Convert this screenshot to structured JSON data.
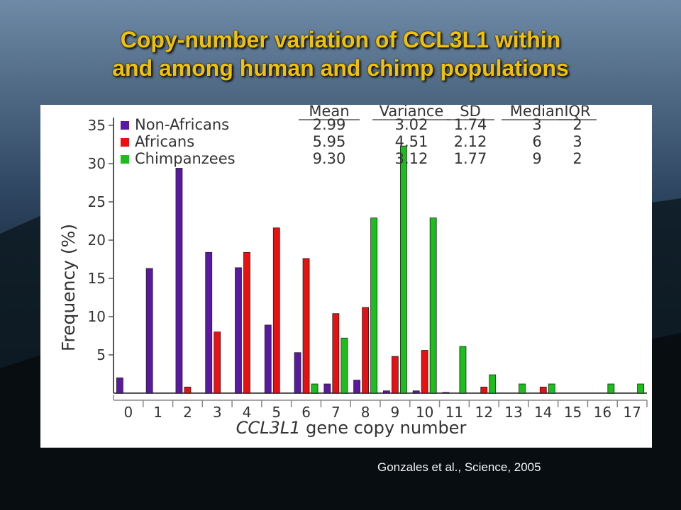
{
  "slide": {
    "title_line1": "Copy-number variation of CCL3L1 within",
    "title_line2": "and among human and chimp populations",
    "citation": "Gonzales et al., Science, 2005"
  },
  "colors": {
    "title": "#f2c200",
    "non_africans": "#5b19a1",
    "africans": "#e81010",
    "chimpanzees": "#1bbf1b"
  },
  "chart_data": {
    "type": "bar",
    "xlabel_italic": "CCL3L1",
    "xlabel_rest": " gene copy number",
    "ylabel": "Frequency (%)",
    "ylim": [
      0,
      35
    ],
    "yticks": [
      5,
      10,
      15,
      20,
      25,
      30,
      35
    ],
    "categories": [
      "0",
      "1",
      "2",
      "3",
      "4",
      "5",
      "6",
      "7",
      "8",
      "9",
      "10",
      "11",
      "12",
      "13",
      "14",
      "15",
      "16",
      "17"
    ],
    "legend_position": "top-left",
    "grid": false,
    "series": [
      {
        "name": "Non-Africans",
        "color": "#5b19a1",
        "values": [
          2,
          16.3,
          29.4,
          18.4,
          16.4,
          8.9,
          5.3,
          1.2,
          1.7,
          0.3,
          0.3,
          0.1,
          0,
          0,
          0,
          0,
          0,
          0
        ]
      },
      {
        "name": "Africans",
        "color": "#e81010",
        "values": [
          0,
          0,
          0.8,
          8.0,
          18.4,
          21.6,
          17.6,
          10.4,
          11.2,
          4.8,
          5.6,
          0,
          0.8,
          0,
          0.8,
          0,
          0,
          0
        ]
      },
      {
        "name": "Chimpanzees",
        "color": "#1bbf1b",
        "values": [
          0,
          0,
          0,
          0,
          0,
          0,
          1.2,
          7.2,
          22.9,
          32.3,
          22.9,
          6.1,
          2.4,
          1.2,
          1.2,
          0,
          1.2,
          1.2
        ]
      }
    ],
    "stats_table": {
      "headers": [
        "Mean",
        "Variance",
        "SD",
        "Median",
        "IQR"
      ],
      "rows": [
        {
          "label": "Non-Africans",
          "values": [
            "2.99",
            "3.02",
            "1.74",
            "3",
            "2"
          ]
        },
        {
          "label": "Africans",
          "values": [
            "5.95",
            "4.51",
            "2.12",
            "6",
            "3"
          ]
        },
        {
          "label": "Chimpanzees",
          "values": [
            "9.30",
            "3.12",
            "1.77",
            "9",
            "2"
          ]
        }
      ]
    }
  }
}
